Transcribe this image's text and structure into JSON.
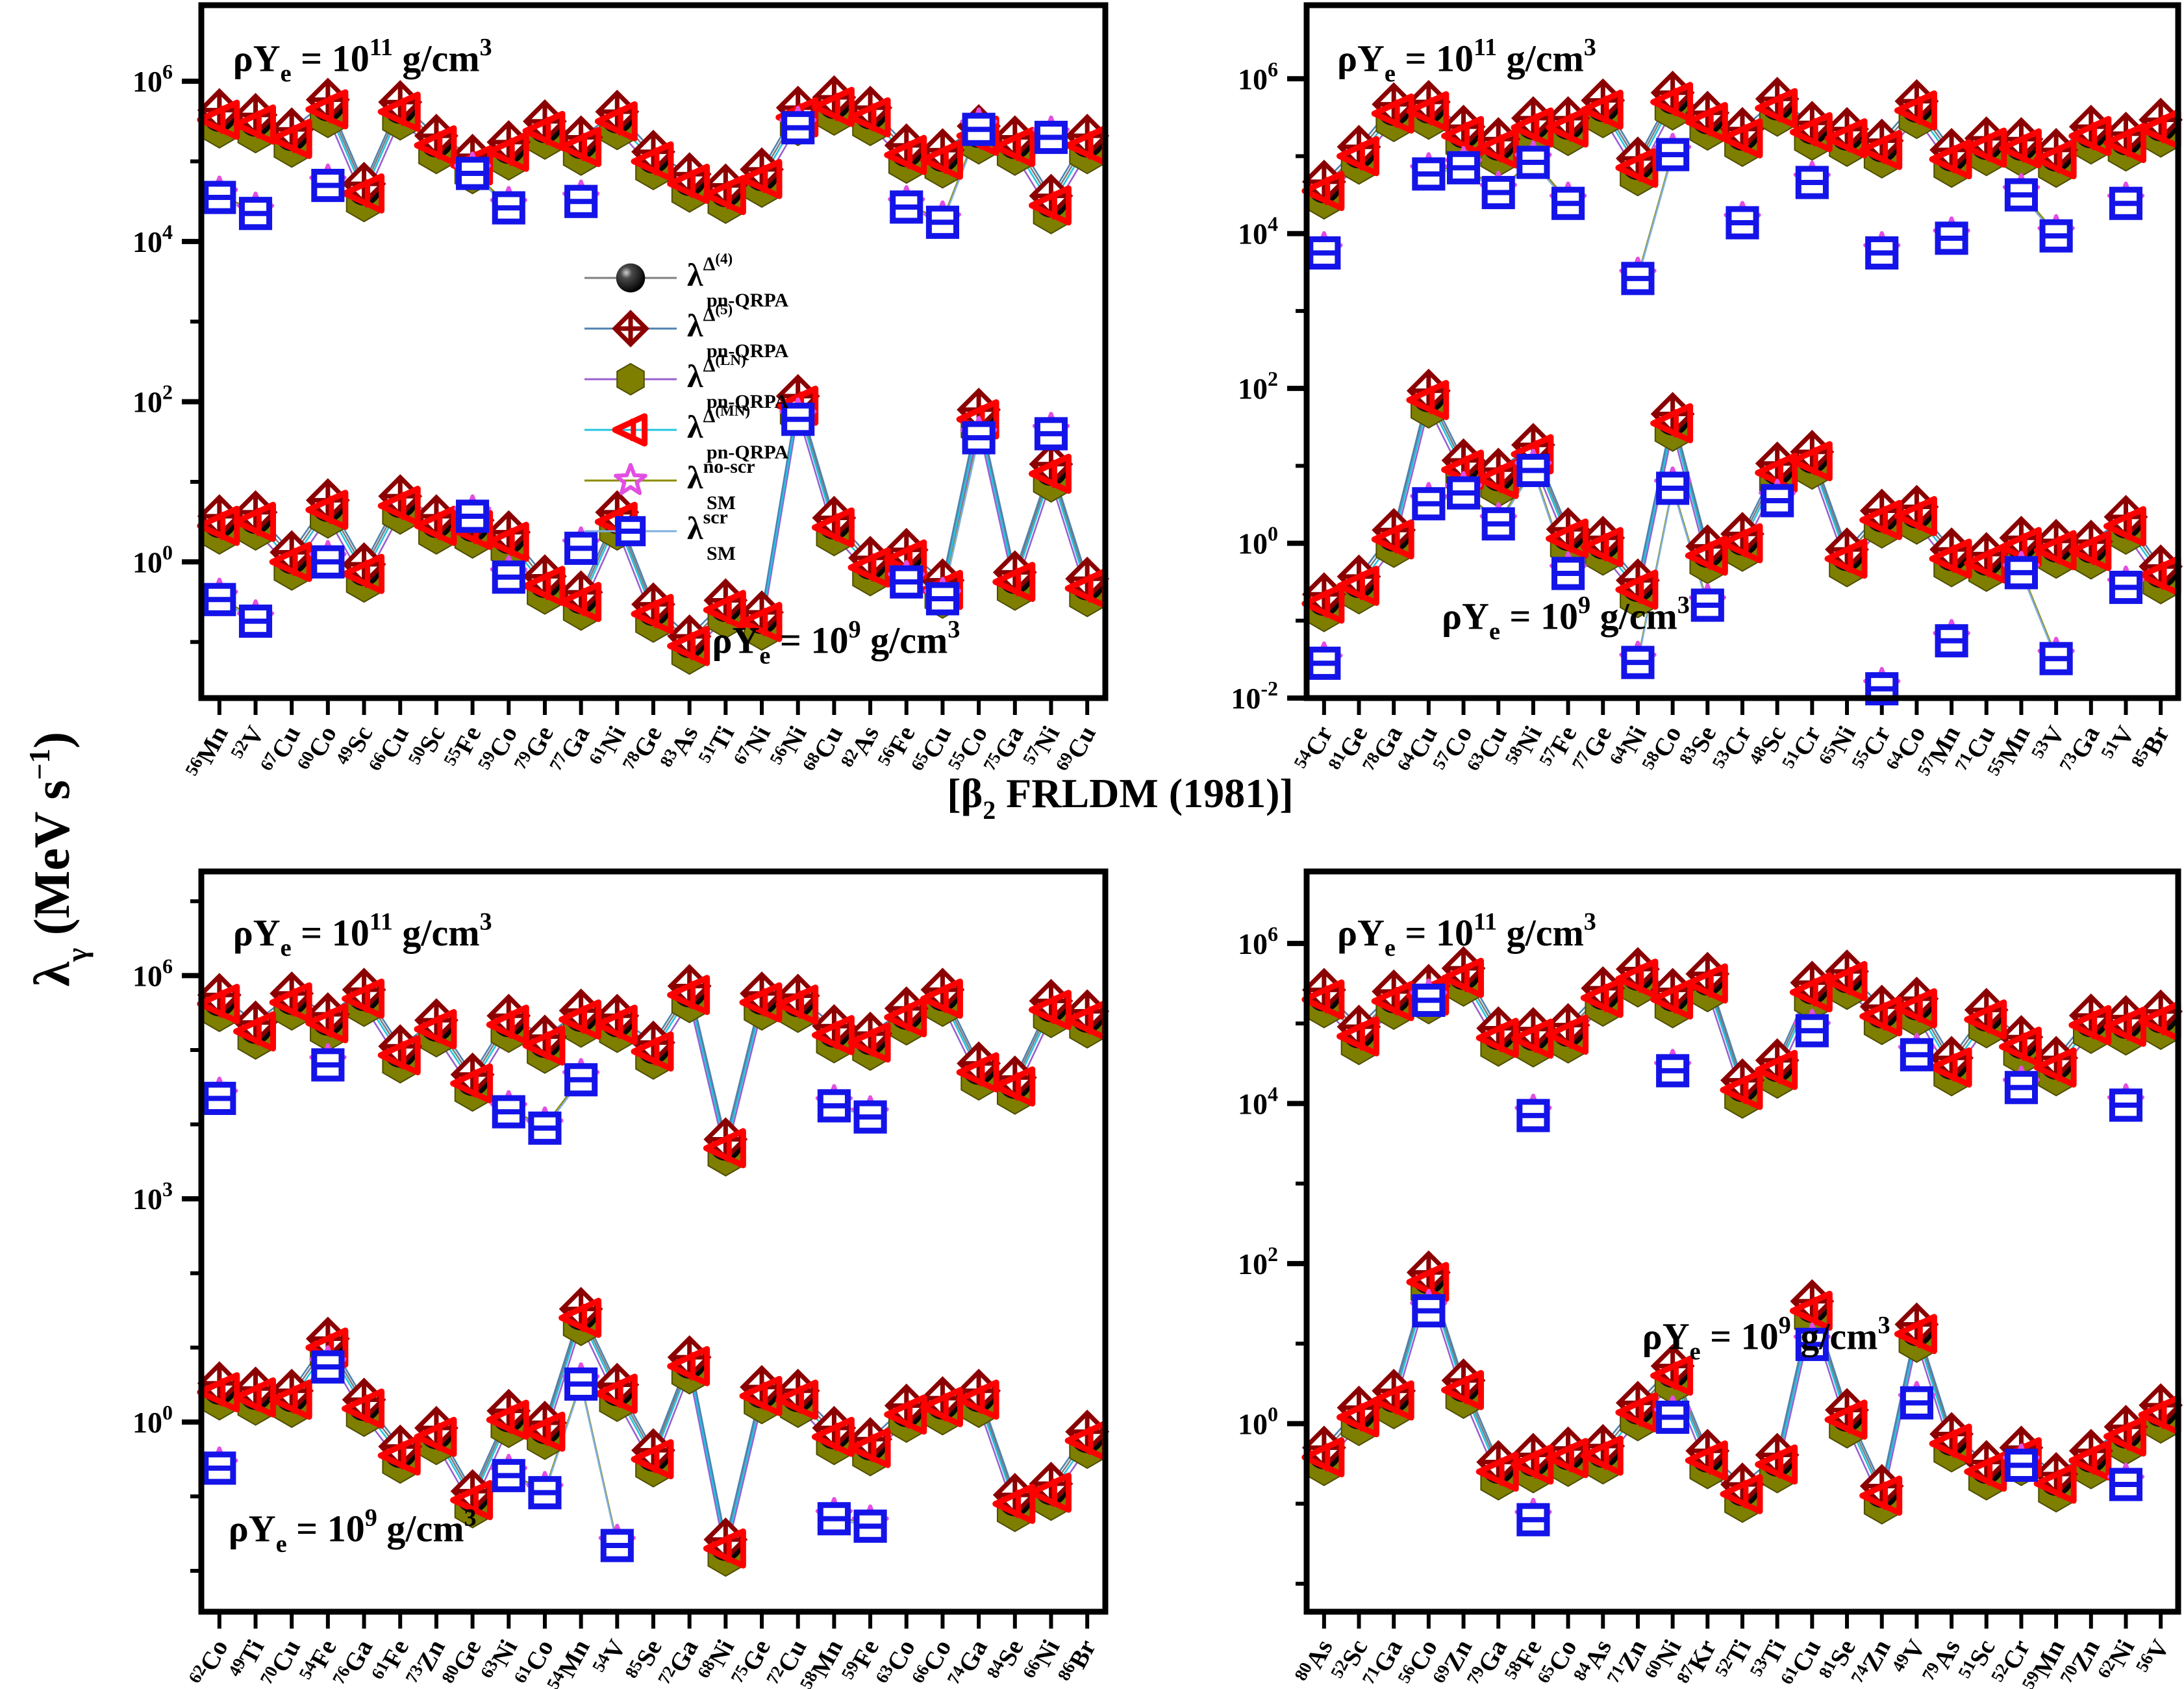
{
  "figure": {
    "y_title": {
      "base": "λ",
      "sub": "γ",
      "mid": " (MeV s",
      "sup": "−1",
      "end": ")"
    },
    "x_title": {
      "pre": "[β",
      "sub": "2",
      "post": " FRLDM (1981)]"
    }
  },
  "legend": {
    "location": "inset of top-left panel",
    "entries": [
      {
        "series": "qrpa4",
        "base": "λ",
        "sup_main": "Δ",
        "sup_paren": "(4)",
        "sub": "pn-QRPA",
        "marker": "black-sphere"
      },
      {
        "series": "qrpa5",
        "base": "λ",
        "sup_main": "Δ",
        "sup_paren": "(5)",
        "sub": "pn-QRPA",
        "marker": "darkred-open-diamond-cross"
      },
      {
        "series": "qrpaLN",
        "base": "λ",
        "sup_main": "Δ",
        "sup_paren": "(LN)",
        "sub": "pn-QRPA",
        "marker": "olive-hexagon"
      },
      {
        "series": "qrpaMN",
        "base": "λ",
        "sup_main": "Δ",
        "sup_paren": "(MN)",
        "sub": "pn-QRPA",
        "marker": "red-left-triangle"
      },
      {
        "series": "smNS",
        "base": "λ",
        "sup_main": "no-scr",
        "sup_paren": "",
        "sub": "SM",
        "marker": "magenta-open-star"
      },
      {
        "series": "smScr",
        "base": "λ",
        "sup_main": "scr",
        "sup_paren": "",
        "sub": "SM",
        "marker": "blue-open-square"
      }
    ]
  },
  "colors": {
    "qrpa4_marker": "#000000",
    "qrpa4_line": "#7f7f7f",
    "qrpa5_marker": "#8b0000",
    "qrpa5_line": "#4f81b0",
    "qrpaLN_marker": "#7e7e00",
    "qrpaLN_line": "#9a5fd0",
    "qrpaMN_marker": "#ff0000",
    "qrpaMN_line": "#22c4e0",
    "smNS_marker": "#e24fe2",
    "smNS_line": "#8b8b00",
    "smScr_marker": "#1414e8",
    "smScr_line": "#7fb0e0"
  },
  "chart_data": {
    "type": "line",
    "y_scale": "log10",
    "values_are": "log10 of gamma-heating rate lambda_gamma in MeV/s (estimated from plot)",
    "sm_noscr_overlaps_sm_scr": true,
    "panels": [
      {
        "name": "top-left",
        "density_high": {
          "pre": "ρY",
          "sub": "e",
          "eq": " = 10",
          "exp": "11",
          "unit": " g/cm",
          "unit_exp": "3"
        },
        "density_low": {
          "pre": "ρY",
          "sub": "e",
          "eq": " = 10",
          "exp": "9",
          "unit": " g/cm",
          "unit_exp": "3"
        },
        "y_tick_exponents": [
          6,
          4,
          2,
          0
        ],
        "ylim_log10": [
          -1.7,
          6.95
        ],
        "x_categories": [
          "56Mn",
          "52V",
          "67Cu",
          "60Co",
          "49Sc",
          "66Cu",
          "50Sc",
          "55Fe",
          "59Co",
          "79Ge",
          "77Ga",
          "61Ni",
          "78Ge",
          "83As",
          "51Ti",
          "67Ni",
          "56Ni",
          "68Cu",
          "82As",
          "56Fe",
          "65Cu",
          "55Co",
          "75Ga",
          "57Ni",
          "69Cu"
        ],
        "series": {
          "pn_qrpa_high": [
            5.52,
            5.46,
            5.28,
            5.65,
            4.6,
            5.62,
            5.2,
            4.95,
            5.12,
            5.38,
            5.18,
            5.5,
            5.0,
            4.72,
            4.58,
            4.78,
            5.55,
            5.68,
            5.55,
            5.08,
            5.02,
            5.32,
            5.18,
            4.45,
            5.2
          ],
          "sm_high": [
            4.55,
            4.35,
            null,
            4.7,
            null,
            null,
            null,
            4.85,
            4.42,
            null,
            4.5,
            null,
            null,
            null,
            null,
            null,
            5.42,
            null,
            null,
            4.43,
            4.24,
            5.4,
            null,
            5.3,
            null
          ],
          "pn_qrpa_low": [
            0.45,
            0.5,
            0.0,
            0.65,
            -0.15,
            0.7,
            0.45,
            0.4,
            0.25,
            -0.3,
            -0.5,
            0.5,
            -0.65,
            -1.05,
            -0.6,
            -0.75,
            1.95,
            0.43,
            -0.07,
            0.03,
            -0.35,
            1.78,
            -0.25,
            1.1,
            -0.33
          ],
          "sm_low": [
            -0.47,
            -0.74,
            null,
            0.0,
            null,
            null,
            null,
            0.57,
            -0.19,
            null,
            0.17,
            null,
            null,
            null,
            null,
            null,
            1.78,
            null,
            null,
            -0.25,
            -0.46,
            1.55,
            null,
            1.6,
            null
          ]
        }
      },
      {
        "name": "top-right",
        "density_high": {
          "pre": "ρY",
          "sub": "e",
          "eq": " = 10",
          "exp": "11",
          "unit": " g/cm",
          "unit_exp": "3"
        },
        "density_low": {
          "pre": "ρY",
          "sub": "e",
          "eq": " = 10",
          "exp": "9",
          "unit": " g/cm",
          "unit_exp": "3"
        },
        "y_tick_exponents": [
          6,
          4,
          2,
          0,
          -2
        ],
        "ylim_log10": [
          -2.0,
          6.95
        ],
        "x_categories": [
          "54Cr",
          "81Ge",
          "78Ga",
          "64Cu",
          "57Co",
          "63Cu",
          "58Ni",
          "57Fe",
          "77Ge",
          "64Ni",
          "58Co",
          "83Se",
          "53Cr",
          "48Sc",
          "51Cr",
          "65Ni",
          "55Cr",
          "64Co",
          "57Mn",
          "71Cu",
          "55Mn",
          "53V",
          "73Ga",
          "51V",
          "85Br"
        ],
        "series": {
          "pn_qrpa_high": [
            4.55,
            5.0,
            5.55,
            5.58,
            5.26,
            5.1,
            5.37,
            5.37,
            5.6,
            4.85,
            5.7,
            5.44,
            5.23,
            5.62,
            5.31,
            5.23,
            5.08,
            5.59,
            4.96,
            5.11,
            5.1,
            4.96,
            5.26,
            5.17,
            5.35
          ],
          "sm_high": [
            3.75,
            null,
            null,
            4.77,
            4.85,
            4.53,
            4.92,
            4.39,
            null,
            3.42,
            5.02,
            null,
            4.14,
            null,
            4.66,
            null,
            3.75,
            null,
            3.94,
            null,
            4.5,
            3.97,
            null,
            4.39,
            null
          ],
          "pn_qrpa_low": [
            -0.78,
            -0.55,
            0.05,
            1.85,
            0.95,
            0.83,
            1.15,
            0.06,
            -0.05,
            -0.6,
            1.55,
            -0.16,
            0.0,
            0.91,
            1.06,
            -0.2,
            0.3,
            0.35,
            -0.2,
            -0.26,
            -0.05,
            -0.09,
            -0.1,
            0.22,
            -0.42
          ],
          "sm_low": [
            -1.55,
            null,
            null,
            0.51,
            0.65,
            0.25,
            0.94,
            -0.39,
            null,
            -1.54,
            0.71,
            -0.8,
            null,
            0.55,
            null,
            null,
            -1.88,
            null,
            -1.26,
            null,
            -0.38,
            -1.49,
            null,
            -0.57,
            null
          ]
        }
      },
      {
        "name": "bottom-left",
        "density_high": {
          "pre": "ρY",
          "sub": "e",
          "eq": " = 10",
          "exp": "11",
          "unit": " g/cm",
          "unit_exp": "3"
        },
        "density_low": {
          "pre": "ρY",
          "sub": "e",
          "eq": " = 10",
          "exp": "9",
          "unit": " g/cm",
          "unit_exp": "3"
        },
        "y_tick_exponents": [
          6,
          3,
          0
        ],
        "ylim_log10": [
          -2.55,
          7.4
        ],
        "x_categories": [
          "62Co",
          "49Ti",
          "70Cu",
          "54Fe",
          "76Ga",
          "61Fe",
          "73Zn",
          "80Ge",
          "63Ni",
          "61Co",
          "54Mn",
          "54V",
          "85Se",
          "72Ga",
          "68Ni",
          "75Ge",
          "72Cu",
          "58Mn",
          "59Fe",
          "63Co",
          "66Co",
          "74Ga",
          "84Se",
          "66Ni",
          "86Br"
        ],
        "series": {
          "pn_qrpa_high": [
            5.62,
            5.25,
            5.64,
            5.36,
            5.69,
            4.93,
            5.28,
            4.55,
            5.34,
            5.06,
            5.41,
            5.34,
            4.98,
            5.74,
            3.68,
            5.64,
            5.61,
            5.2,
            5.1,
            5.44,
            5.69,
            4.7,
            4.51,
            5.54,
            5.4
          ],
          "sm_high": [
            4.35,
            null,
            null,
            4.8,
            null,
            null,
            null,
            null,
            4.17,
            3.95,
            4.6,
            null,
            null,
            null,
            null,
            null,
            null,
            4.25,
            4.1,
            null,
            null,
            null,
            null,
            null,
            null
          ],
          "pn_qrpa_low": [
            0.4,
            0.33,
            0.3,
            1.0,
            0.18,
            -0.45,
            -0.2,
            -1.05,
            0.03,
            -0.13,
            1.4,
            0.38,
            -0.5,
            0.75,
            -1.7,
            0.35,
            0.3,
            -0.2,
            -0.35,
            0.1,
            0.2,
            0.3,
            -1.1,
            -0.95,
            -0.25
          ],
          "sm_low": [
            -0.62,
            null,
            null,
            0.74,
            null,
            null,
            null,
            null,
            -0.72,
            -0.95,
            0.51,
            -1.66,
            null,
            null,
            null,
            null,
            null,
            -1.3,
            -1.4,
            null,
            null,
            null,
            null,
            null,
            null
          ]
        }
      },
      {
        "name": "bottom-right",
        "density_high": {
          "pre": "ρY",
          "sub": "e",
          "eq": " = 10",
          "exp": "11",
          "unit": " g/cm",
          "unit_exp": "3"
        },
        "density_low": {
          "pre": "ρY",
          "sub": "e",
          "eq": " = 10",
          "exp": "9",
          "unit": " g/cm",
          "unit_exp": "3"
        },
        "y_tick_exponents": [
          6,
          4,
          2,
          0
        ],
        "ylim_log10": [
          -2.35,
          6.9
        ],
        "x_categories": [
          "80As",
          "52Sc",
          "71Ga",
          "56Co",
          "69Zn",
          "79Ga",
          "58Fe",
          "65Co",
          "84As",
          "71Zn",
          "60Ni",
          "87Kr",
          "52Ti",
          "53Ti",
          "61Cu",
          "81Se",
          "74Zn",
          "49V",
          "79As",
          "51Sc",
          "52Cr",
          "59Mn",
          "70Zn",
          "62Ni",
          "56V"
        ],
        "series": {
          "pn_qrpa_high": [
            5.3,
            4.84,
            5.28,
            5.35,
            5.57,
            4.82,
            4.81,
            4.86,
            5.32,
            5.56,
            5.3,
            5.5,
            4.17,
            4.42,
            5.39,
            5.53,
            5.09,
            5.19,
            4.45,
            5.05,
            4.71,
            4.45,
            4.98,
            4.96,
            5.03
          ],
          "sm_high": [
            null,
            null,
            null,
            5.29,
            null,
            null,
            3.85,
            null,
            null,
            null,
            4.41,
            null,
            null,
            null,
            4.91,
            null,
            null,
            4.61,
            null,
            null,
            4.2,
            null,
            null,
            3.98,
            null
          ],
          "pn_qrpa_low": [
            -0.42,
            0.08,
            0.29,
            1.77,
            0.42,
            -0.6,
            -0.51,
            -0.43,
            -0.4,
            0.14,
            0.6,
            -0.46,
            -0.88,
            -0.51,
            1.41,
            0.05,
            -0.9,
            1.12,
            -0.25,
            -0.6,
            -0.42,
            -0.75,
            -0.46,
            -0.16,
            0.11
          ],
          "sm_low": [
            null,
            null,
            null,
            1.41,
            null,
            null,
            -1.2,
            null,
            null,
            null,
            0.08,
            null,
            null,
            null,
            0.99,
            null,
            null,
            0.26,
            null,
            null,
            -0.52,
            null,
            null,
            -0.76,
            null
          ]
        }
      }
    ]
  }
}
